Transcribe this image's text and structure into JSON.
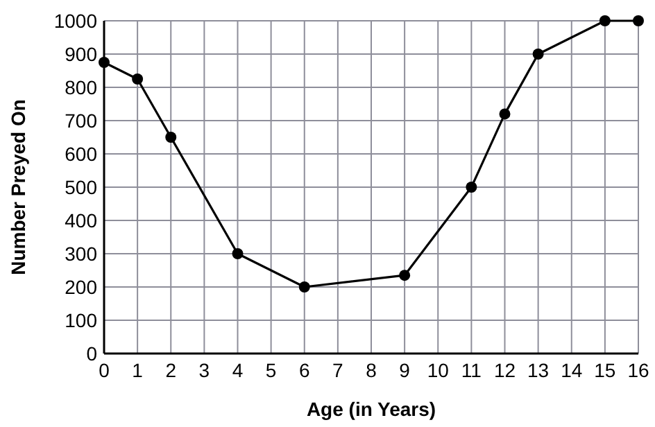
{
  "chart_data": {
    "type": "line",
    "xlabel": "Age (in Years)",
    "ylabel": "Number Preyed On",
    "x": [
      0,
      1,
      2,
      4,
      6,
      9,
      11,
      12,
      13,
      15,
      16
    ],
    "values": [
      875,
      825,
      650,
      300,
      200,
      235,
      500,
      720,
      900,
      1000,
      1000
    ],
    "color": "#000000",
    "marker": "circle",
    "line_style": "solid",
    "grid": true,
    "xlim": [
      0,
      16
    ],
    "xticks": [
      0,
      1,
      2,
      3,
      4,
      5,
      6,
      7,
      8,
      9,
      10,
      11,
      12,
      13,
      14,
      15,
      16
    ],
    "ylim": [
      0,
      1000
    ],
    "yticks": [
      0,
      100,
      200,
      300,
      400,
      500,
      600,
      700,
      800,
      900,
      1000
    ]
  }
}
